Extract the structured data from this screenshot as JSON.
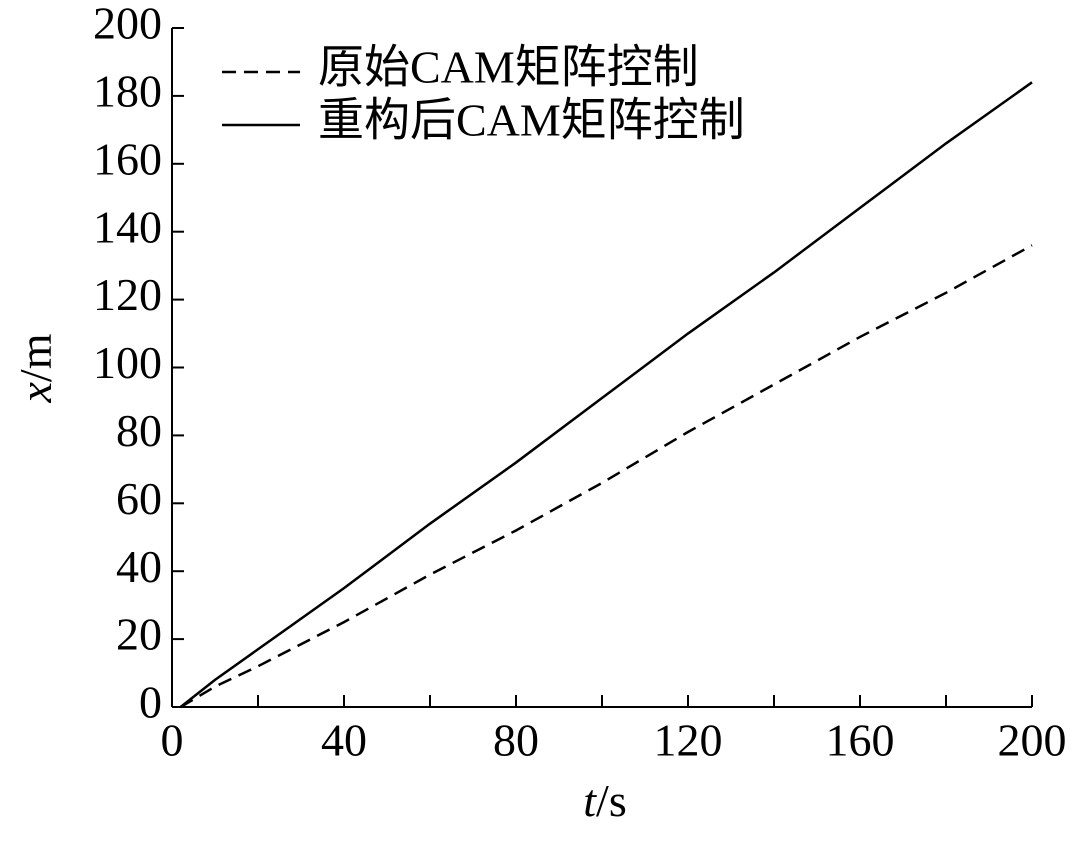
{
  "chart_data": {
    "type": "line",
    "xlabel": [
      "t",
      "/s"
    ],
    "ylabel": [
      "x",
      "/m"
    ],
    "x": [
      2,
      10,
      20,
      40,
      60,
      80,
      100,
      120,
      140,
      160,
      180,
      200
    ],
    "series": [
      {
        "name": "原始CAM矩阵控制",
        "color": "#000000",
        "dash": "dashed",
        "values": [
          0,
          6,
          12,
          25,
          39,
          52,
          66,
          81,
          95,
          109,
          122,
          136
        ]
      },
      {
        "name": "重构后CAM矩阵控制",
        "color": "#000000",
        "dash": "solid",
        "values": [
          0,
          8,
          17,
          35,
          54,
          72,
          91,
          110,
          128,
          147,
          166,
          184
        ]
      }
    ],
    "xlim": [
      0,
      200
    ],
    "xticks": [
      0,
      40,
      80,
      120,
      160,
      200
    ],
    "xminorticks": [
      20,
      60,
      100,
      140,
      180
    ],
    "ylim": [
      0,
      200
    ],
    "yticks": [
      0,
      20,
      40,
      60,
      80,
      100,
      120,
      140,
      160,
      180,
      200
    ],
    "grid": false,
    "legend": "upper left"
  }
}
